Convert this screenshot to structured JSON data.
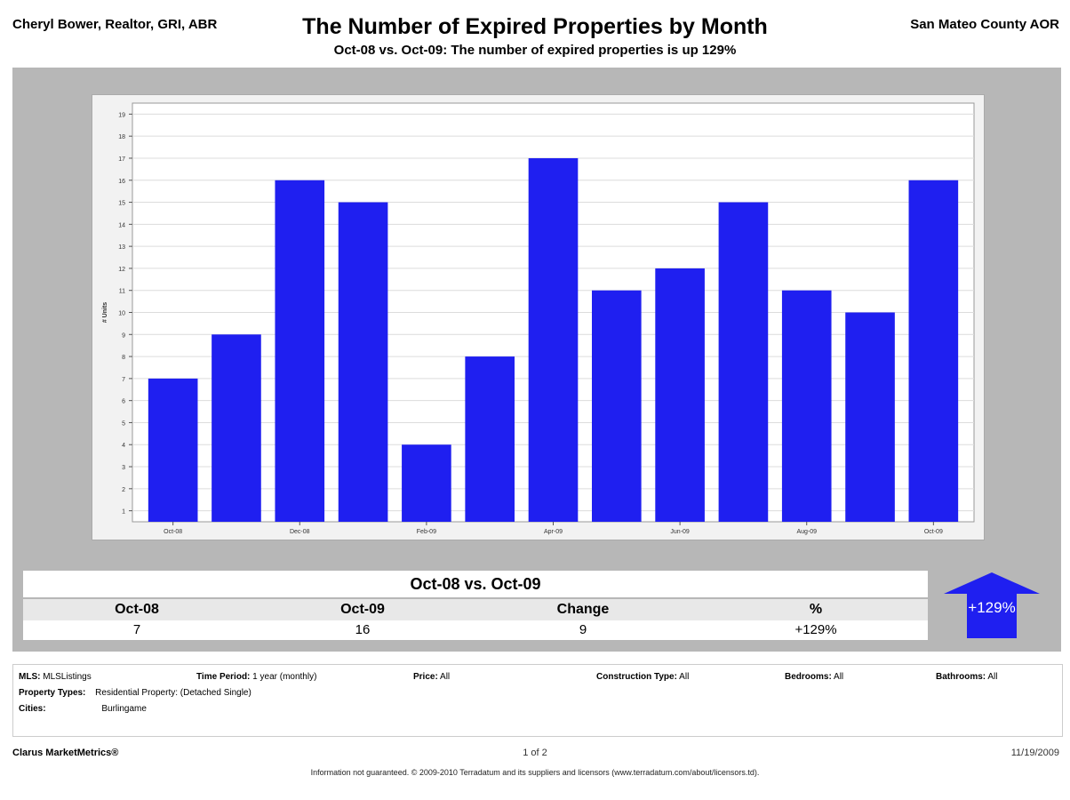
{
  "header": {
    "left": "Cheryl Bower, Realtor, GRI, ABR",
    "title": "The Number of Expired Properties by Month",
    "right": "San Mateo County AOR",
    "subtitle": "Oct-08 vs. Oct-09:  The number of expired properties is up 129%"
  },
  "colors": {
    "bar": "#1f1ff0",
    "panel": "#b7b7b7",
    "plot_bg": "#ffffff",
    "arrow": "#1f1ff0"
  },
  "chart_data": {
    "type": "bar",
    "categories": [
      "Oct-08",
      "Nov-08",
      "Dec-08",
      "Jan-09",
      "Feb-09",
      "Mar-09",
      "Apr-09",
      "May-09",
      "Jun-09",
      "Jul-09",
      "Aug-09",
      "Sep-09",
      "Oct-09"
    ],
    "tick_labels": [
      "Oct-08",
      "Dec-08",
      "Feb-09",
      "Apr-09",
      "Jun-09",
      "Aug-09",
      "Oct-09"
    ],
    "values": [
      7,
      9,
      16,
      15,
      4,
      8,
      17,
      11,
      12,
      15,
      11,
      10,
      16
    ],
    "ylabel": "# Units",
    "ylim": [
      1,
      19
    ],
    "yticks": [
      1,
      2,
      3,
      4,
      5,
      6,
      7,
      8,
      9,
      10,
      11,
      12,
      13,
      14,
      15,
      16,
      17,
      18,
      19
    ],
    "grid": true
  },
  "summary": {
    "title": "Oct-08 vs. Oct-09",
    "headers": [
      "Oct-08",
      "Oct-09",
      "Change",
      "%"
    ],
    "values": [
      "7",
      "16",
      "9",
      "+129%"
    ],
    "arrow_label": "+129%"
  },
  "info": {
    "mls_label": "MLS:",
    "mls_value": "MLSListings",
    "time_label": "Time Period:",
    "time_value": "1 year (monthly)",
    "price_label": "Price:",
    "price_value": "All",
    "construction_label": "Construction Type:",
    "construction_value": "All",
    "bedrooms_label": "Bedrooms:",
    "bedrooms_value": "All",
    "bathrooms_label": "Bathrooms:",
    "bathrooms_value": "All",
    "property_label": "Property Types:",
    "property_value": "Residential Property: (Detached Single)",
    "cities_label": "Cities:",
    "cities_value": "Burlingame"
  },
  "footer": {
    "brand": "Clarus MarketMetrics®",
    "page": "1 of 2",
    "date": "11/19/2009",
    "disclaimer": "Information not guaranteed.  © 2009-2010 Terradatum and its suppliers and licensors (www.terradatum.com/about/licensors.td)."
  }
}
